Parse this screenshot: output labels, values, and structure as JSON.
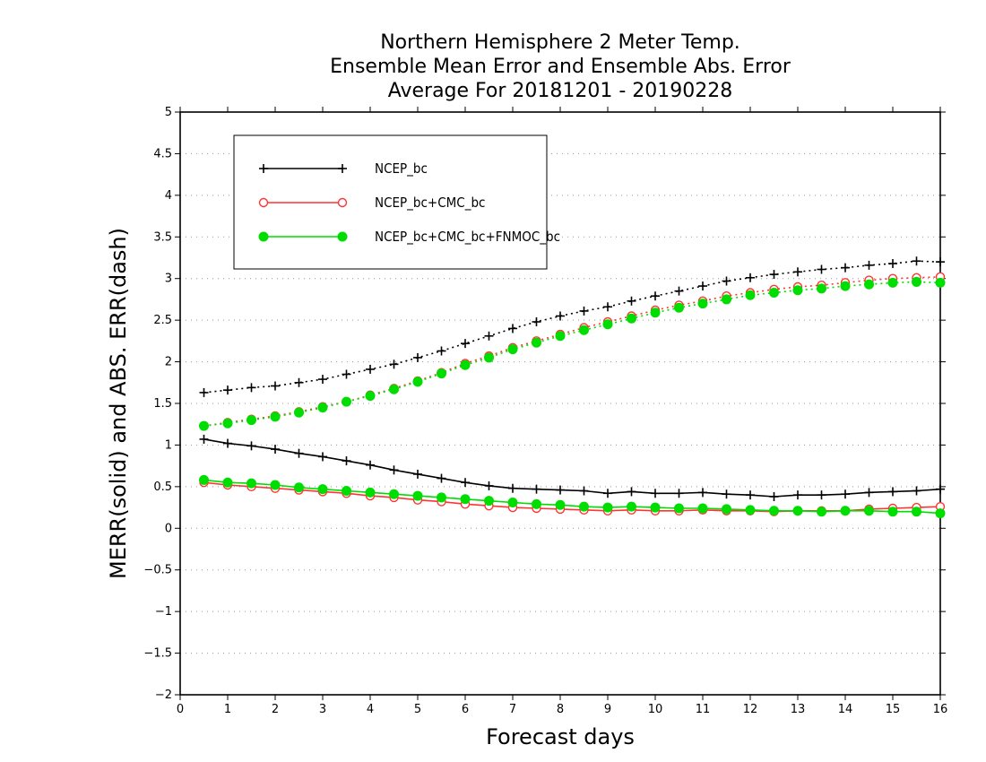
{
  "chart_data": {
    "type": "line",
    "title_lines": [
      "Northern Hemisphere 2 Meter Temp.",
      "Ensemble Mean Error and Ensemble Abs. Error",
      "Average For 20181201 - 20190228"
    ],
    "xlabel": "Forecast days",
    "ylabel": "MERR(solid) and ABS. ERR(dash)",
    "xlim": [
      0,
      16
    ],
    "ylim": [
      -2,
      5
    ],
    "xticks": [
      0,
      1,
      2,
      3,
      4,
      5,
      6,
      7,
      8,
      9,
      10,
      11,
      12,
      13,
      14,
      15,
      16
    ],
    "xtick_labels": [
      "0",
      "1",
      "2",
      "3",
      "4",
      "5",
      "6",
      "7",
      "8",
      "9",
      "10",
      "11",
      "12",
      "13",
      "14",
      "15",
      "16"
    ],
    "yticks": [
      -2,
      -1.5,
      -1,
      -0.5,
      0,
      0.5,
      1,
      1.5,
      2,
      2.5,
      3,
      3.5,
      4,
      4.5,
      5
    ],
    "ytick_labels": [
      "−2",
      "−1.5",
      "−1",
      "−0.5",
      "0",
      "0.5",
      "1",
      "1.5",
      "2",
      "2.5",
      "3",
      "3.5",
      "4",
      "4.5",
      "5"
    ],
    "grid": "horizontal-dotted",
    "legend_position": "top-left",
    "x": [
      0.5,
      1,
      1.5,
      2,
      2.5,
      3,
      3.5,
      4,
      4.5,
      5,
      5.5,
      6,
      6.5,
      7,
      7.5,
      8,
      8.5,
      9,
      9.5,
      10,
      10.5,
      11,
      11.5,
      12,
      12.5,
      13,
      13.5,
      14,
      14.5,
      15,
      15.5,
      16
    ],
    "series": [
      {
        "name": "NCEP_bc",
        "color": "#000000",
        "marker": "plus",
        "merr": [
          1.07,
          1.02,
          0.99,
          0.95,
          0.9,
          0.86,
          0.81,
          0.76,
          0.7,
          0.65,
          0.6,
          0.55,
          0.51,
          0.48,
          0.47,
          0.46,
          0.45,
          0.42,
          0.44,
          0.42,
          0.42,
          0.43,
          0.41,
          0.4,
          0.38,
          0.4,
          0.4,
          0.41,
          0.43,
          0.44,
          0.45,
          0.47
        ],
        "abs_err": [
          1.63,
          1.66,
          1.69,
          1.71,
          1.75,
          1.79,
          1.85,
          1.91,
          1.97,
          2.05,
          2.13,
          2.22,
          2.31,
          2.4,
          2.48,
          2.55,
          2.61,
          2.66,
          2.73,
          2.79,
          2.85,
          2.91,
          2.97,
          3.01,
          3.05,
          3.08,
          3.11,
          3.13,
          3.16,
          3.18,
          3.21,
          3.2
        ]
      },
      {
        "name": "NCEP_bc+CMC_bc",
        "color": "#ff3333",
        "marker": "open-circle",
        "merr": [
          0.55,
          0.52,
          0.5,
          0.48,
          0.46,
          0.44,
          0.42,
          0.39,
          0.37,
          0.34,
          0.32,
          0.29,
          0.27,
          0.25,
          0.24,
          0.23,
          0.22,
          0.21,
          0.22,
          0.21,
          0.21,
          0.22,
          0.21,
          0.21,
          0.2,
          0.21,
          0.21,
          0.21,
          0.23,
          0.24,
          0.25,
          0.26
        ],
        "abs_err": [
          1.23,
          1.27,
          1.31,
          1.35,
          1.4,
          1.46,
          1.52,
          1.6,
          1.68,
          1.77,
          1.87,
          1.98,
          2.07,
          2.17,
          2.25,
          2.33,
          2.41,
          2.48,
          2.55,
          2.62,
          2.68,
          2.73,
          2.79,
          2.83,
          2.87,
          2.9,
          2.92,
          2.95,
          2.98,
          3.0,
          3.01,
          3.02
        ]
      },
      {
        "name": "NCEP_bc+CMC_bc+FNMOC_bc",
        "color": "#00dd00",
        "marker": "filled-circle",
        "merr": [
          0.58,
          0.55,
          0.54,
          0.52,
          0.49,
          0.47,
          0.45,
          0.43,
          0.41,
          0.39,
          0.37,
          0.35,
          0.33,
          0.31,
          0.29,
          0.28,
          0.26,
          0.25,
          0.26,
          0.25,
          0.24,
          0.24,
          0.23,
          0.22,
          0.21,
          0.21,
          0.2,
          0.21,
          0.21,
          0.2,
          0.2,
          0.18
        ],
        "abs_err": [
          1.23,
          1.26,
          1.3,
          1.34,
          1.39,
          1.45,
          1.52,
          1.59,
          1.67,
          1.76,
          1.86,
          1.96,
          2.05,
          2.15,
          2.23,
          2.31,
          2.38,
          2.45,
          2.52,
          2.59,
          2.65,
          2.7,
          2.75,
          2.8,
          2.83,
          2.86,
          2.88,
          2.91,
          2.93,
          2.95,
          2.96,
          2.95
        ]
      }
    ]
  }
}
